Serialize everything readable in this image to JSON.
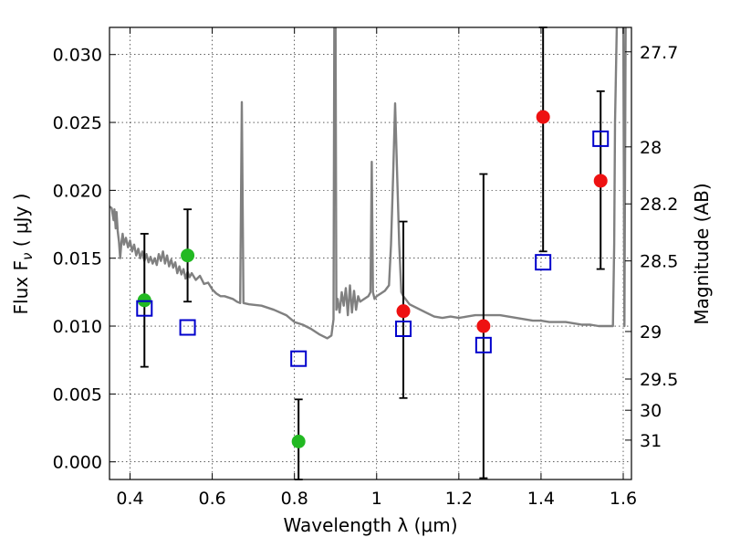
{
  "chart_data": {
    "type": "scatter",
    "xlabel": "Wavelength  λ (μm)",
    "ylabel": "Flux  F",
    "ylabel_sub": "ν",
    "ylabel_unit": " ( μJy )",
    "y2label": "Magnitude (AB)",
    "xlim": [
      0.35,
      1.62
    ],
    "ylim": [
      -0.0013,
      0.032
    ],
    "grid": true,
    "x_ticks": [
      0.4,
      0.6,
      0.8,
      1.0,
      1.2,
      1.4,
      1.6
    ],
    "x_tick_labels": [
      "0.4",
      "0.6",
      "0.8",
      "1",
      "1.2",
      "1.4",
      "1.6"
    ],
    "y_ticks": [
      0.0,
      0.005,
      0.01,
      0.015,
      0.02,
      0.025,
      0.03
    ],
    "y_tick_labels": [
      "0.000",
      "0.005",
      "0.010",
      "0.015",
      "0.020",
      "0.025",
      "0.030"
    ],
    "y2_ticks": [
      {
        "label": "27.7",
        "flux": 0.0302
      },
      {
        "label": "28",
        "flux": 0.0232
      },
      {
        "label": "28.2",
        "flux": 0.019
      },
      {
        "label": "28.5",
        "flux": 0.0148
      },
      {
        "label": "29",
        "flux": 0.0096
      },
      {
        "label": "29.5",
        "flux": 0.0061
      },
      {
        "label": "30",
        "flux": 0.0038
      },
      {
        "label": "31",
        "flux": 0.0016
      }
    ],
    "series": [
      {
        "name": "green-detections",
        "color": "#22b922",
        "marker": "circle",
        "points": [
          {
            "x": 0.435,
            "y": 0.0119
          },
          {
            "x": 0.54,
            "y": 0.0152
          },
          {
            "x": 0.81,
            "y": 0.0015
          }
        ]
      },
      {
        "name": "red-detections",
        "color": "#ee1111",
        "marker": "circle",
        "points": [
          {
            "x": 1.065,
            "y": 0.0111
          },
          {
            "x": 1.26,
            "y": 0.01
          },
          {
            "x": 1.405,
            "y": 0.0254
          },
          {
            "x": 1.545,
            "y": 0.0207
          }
        ]
      },
      {
        "name": "model-photometry",
        "color": "#0000cc",
        "marker": "square-open",
        "points": [
          {
            "x": 0.435,
            "y": 0.0113
          },
          {
            "x": 0.54,
            "y": 0.0099
          },
          {
            "x": 0.81,
            "y": 0.0076
          },
          {
            "x": 1.065,
            "y": 0.0098
          },
          {
            "x": 1.26,
            "y": 0.0086
          },
          {
            "x": 1.405,
            "y": 0.0147
          },
          {
            "x": 1.545,
            "y": 0.0238
          }
        ]
      }
    ],
    "error_bars": [
      {
        "x": 0.435,
        "low": 0.007,
        "high": 0.0168
      },
      {
        "x": 0.54,
        "low": 0.0118,
        "high": 0.0186
      },
      {
        "x": 0.81,
        "low": -0.0013,
        "high": 0.0046
      },
      {
        "x": 1.065,
        "low": 0.0047,
        "high": 0.0177
      },
      {
        "x": 1.26,
        "low": -0.0012,
        "high": 0.0212
      },
      {
        "x": 1.405,
        "low": 0.0155,
        "high": 0.032
      },
      {
        "x": 1.545,
        "low": 0.0142,
        "high": 0.0273
      }
    ],
    "model_spectrum": {
      "name": "template-sed",
      "color": "#808080",
      "points": [
        [
          0.35,
          0.0188
        ],
        [
          0.355,
          0.0187
        ],
        [
          0.36,
          0.0178
        ],
        [
          0.362,
          0.0186
        ],
        [
          0.365,
          0.0172
        ],
        [
          0.367,
          0.0184
        ],
        [
          0.37,
          0.017
        ],
        [
          0.373,
          0.0162
        ],
        [
          0.376,
          0.015
        ],
        [
          0.379,
          0.0162
        ],
        [
          0.382,
          0.0168
        ],
        [
          0.385,
          0.016
        ],
        [
          0.39,
          0.0165
        ],
        [
          0.395,
          0.0158
        ],
        [
          0.4,
          0.0163
        ],
        [
          0.405,
          0.0155
        ],
        [
          0.41,
          0.016
        ],
        [
          0.415,
          0.0152
        ],
        [
          0.42,
          0.0157
        ],
        [
          0.425,
          0.015
        ],
        [
          0.43,
          0.0155
        ],
        [
          0.435,
          0.0148
        ],
        [
          0.44,
          0.0153
        ],
        [
          0.445,
          0.0147
        ],
        [
          0.45,
          0.0151
        ],
        [
          0.455,
          0.0146
        ],
        [
          0.46,
          0.015
        ],
        [
          0.465,
          0.0145
        ],
        [
          0.47,
          0.0153
        ],
        [
          0.475,
          0.0148
        ],
        [
          0.48,
          0.0155
        ],
        [
          0.485,
          0.0146
        ],
        [
          0.49,
          0.0152
        ],
        [
          0.495,
          0.0144
        ],
        [
          0.5,
          0.0149
        ],
        [
          0.505,
          0.0143
        ],
        [
          0.51,
          0.0147
        ],
        [
          0.515,
          0.0139
        ],
        [
          0.52,
          0.0144
        ],
        [
          0.525,
          0.0138
        ],
        [
          0.53,
          0.0142
        ],
        [
          0.535,
          0.0135
        ],
        [
          0.54,
          0.014
        ],
        [
          0.545,
          0.0136
        ],
        [
          0.55,
          0.0139
        ],
        [
          0.56,
          0.0134
        ],
        [
          0.57,
          0.0137
        ],
        [
          0.58,
          0.0131
        ],
        [
          0.59,
          0.0132
        ],
        [
          0.6,
          0.0127
        ],
        [
          0.61,
          0.0124
        ],
        [
          0.62,
          0.0122
        ],
        [
          0.63,
          0.0122
        ],
        [
          0.64,
          0.0121
        ],
        [
          0.65,
          0.012
        ],
        [
          0.66,
          0.0118
        ],
        [
          0.668,
          0.0117
        ],
        [
          0.672,
          0.0265
        ],
        [
          0.676,
          0.0117
        ],
        [
          0.69,
          0.0116
        ],
        [
          0.72,
          0.0115
        ],
        [
          0.75,
          0.0112
        ],
        [
          0.78,
          0.0108
        ],
        [
          0.8,
          0.0103
        ],
        [
          0.82,
          0.0101
        ],
        [
          0.84,
          0.0098
        ],
        [
          0.86,
          0.0094
        ],
        [
          0.88,
          0.0091
        ],
        [
          0.89,
          0.0093
        ],
        [
          0.895,
          0.0105
        ],
        [
          0.897,
          0.033
        ],
        [
          0.9,
          0.033
        ],
        [
          0.902,
          0.0112
        ],
        [
          0.905,
          0.012
        ],
        [
          0.91,
          0.011
        ],
        [
          0.915,
          0.0125
        ],
        [
          0.92,
          0.0115
        ],
        [
          0.925,
          0.0128
        ],
        [
          0.93,
          0.0108
        ],
        [
          0.935,
          0.013
        ],
        [
          0.94,
          0.011
        ],
        [
          0.945,
          0.0126
        ],
        [
          0.95,
          0.0112
        ],
        [
          0.955,
          0.0122
        ],
        [
          0.96,
          0.0118
        ],
        [
          0.97,
          0.012
        ],
        [
          0.98,
          0.0122
        ],
        [
          0.985,
          0.0125
        ],
        [
          0.988,
          0.0221
        ],
        [
          0.991,
          0.0125
        ],
        [
          0.995,
          0.012
        ],
        [
          1.0,
          0.0122
        ],
        [
          1.01,
          0.0124
        ],
        [
          1.02,
          0.0126
        ],
        [
          1.03,
          0.013
        ],
        [
          1.035,
          0.016
        ],
        [
          1.04,
          0.021
        ],
        [
          1.045,
          0.0264
        ],
        [
          1.05,
          0.021
        ],
        [
          1.055,
          0.016
        ],
        [
          1.06,
          0.0125
        ],
        [
          1.065,
          0.0122
        ],
        [
          1.07,
          0.012
        ],
        [
          1.08,
          0.0116
        ],
        [
          1.1,
          0.0113
        ],
        [
          1.12,
          0.011
        ],
        [
          1.14,
          0.0107
        ],
        [
          1.16,
          0.0106
        ],
        [
          1.18,
          0.0107
        ],
        [
          1.2,
          0.0106
        ],
        [
          1.22,
          0.0107
        ],
        [
          1.24,
          0.0108
        ],
        [
          1.26,
          0.0108
        ],
        [
          1.28,
          0.0108
        ],
        [
          1.3,
          0.0108
        ],
        [
          1.32,
          0.0107
        ],
        [
          1.34,
          0.0106
        ],
        [
          1.36,
          0.0105
        ],
        [
          1.38,
          0.0104
        ],
        [
          1.4,
          0.0104
        ],
        [
          1.42,
          0.0103
        ],
        [
          1.44,
          0.0103
        ],
        [
          1.46,
          0.0103
        ],
        [
          1.48,
          0.0102
        ],
        [
          1.5,
          0.0101
        ],
        [
          1.52,
          0.0101
        ],
        [
          1.54,
          0.01
        ],
        [
          1.56,
          0.01
        ],
        [
          1.575,
          0.01
        ],
        [
          1.578,
          0.016
        ],
        [
          1.58,
          0.025
        ],
        [
          1.585,
          0.033
        ],
        [
          1.6,
          0.033
        ],
        [
          1.603,
          0.01
        ],
        [
          1.606,
          0.033
        ],
        [
          1.62,
          0.033
        ]
      ]
    }
  }
}
